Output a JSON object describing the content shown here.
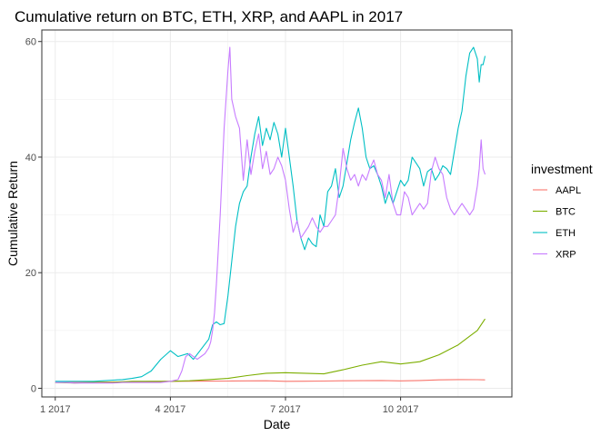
{
  "chart_data": {
    "type": "line",
    "title": "Cumulative return on BTC, ETH, XRP, and AAPL in 2017",
    "xlabel": "Date",
    "ylabel": "Cumulative Return",
    "xlim": [
      -0.35,
      11.9
    ],
    "ylim": [
      -1.5,
      62
    ],
    "x_ticks": [
      0,
      3,
      6,
      9
    ],
    "x_tick_labels": [
      "1 2017",
      "4 2017",
      "7 2017",
      "10 2017"
    ],
    "y_ticks": [
      0,
      20,
      40,
      60
    ],
    "y_tick_labels": [
      "0",
      "20",
      "40",
      "60"
    ],
    "grid": true,
    "legend": {
      "title": "investment",
      "position": "right"
    },
    "series": [
      {
        "name": "AAPL",
        "color": "#F8766D",
        "x": [
          0,
          0.5,
          1,
          1.5,
          2,
          2.5,
          3,
          3.5,
          4,
          4.5,
          5,
          5.5,
          6,
          6.5,
          7,
          7.5,
          8,
          8.5,
          9,
          9.5,
          10,
          10.5,
          11,
          11.2
        ],
        "y": [
          1.0,
          1.02,
          1.05,
          1.08,
          1.12,
          1.18,
          1.2,
          1.22,
          1.23,
          1.25,
          1.28,
          1.3,
          1.2,
          1.22,
          1.25,
          1.3,
          1.32,
          1.35,
          1.28,
          1.35,
          1.45,
          1.5,
          1.48,
          1.45
        ]
      },
      {
        "name": "BTC",
        "color": "#7CAE00",
        "x": [
          0,
          0.5,
          1,
          1.5,
          2,
          2.5,
          3,
          3.5,
          4,
          4.5,
          5,
          5.5,
          6,
          6.5,
          7,
          7.5,
          8,
          8.5,
          9,
          9.5,
          10,
          10.5,
          11,
          11.2
        ],
        "y": [
          1.0,
          0.9,
          1.0,
          1.05,
          1.2,
          1.2,
          1.2,
          1.3,
          1.5,
          1.7,
          2.2,
          2.6,
          2.7,
          2.6,
          2.5,
          3.2,
          4.0,
          4.6,
          4.2,
          4.6,
          5.8,
          7.5,
          10.0,
          12.0
        ]
      },
      {
        "name": "ETH",
        "color": "#00BFC4",
        "x": [
          0,
          0.25,
          0.5,
          0.75,
          1,
          1.25,
          1.5,
          1.75,
          2,
          2.25,
          2.5,
          2.75,
          3,
          3.2,
          3.45,
          3.6,
          4,
          4.1,
          4.2,
          4.3,
          4.4,
          4.5,
          4.6,
          4.7,
          4.8,
          4.9,
          5.0,
          5.1,
          5.2,
          5.3,
          5.4,
          5.5,
          5.6,
          5.7,
          5.8,
          5.9,
          6.0,
          6.1,
          6.2,
          6.3,
          6.4,
          6.5,
          6.6,
          6.7,
          6.8,
          6.9,
          7.0,
          7.1,
          7.2,
          7.3,
          7.4,
          7.5,
          7.6,
          7.7,
          7.8,
          7.9,
          8.0,
          8.1,
          8.2,
          8.3,
          8.4,
          8.5,
          8.6,
          8.7,
          8.8,
          8.9,
          9.0,
          9.1,
          9.2,
          9.3,
          9.4,
          9.5,
          9.6,
          9.7,
          9.8,
          9.9,
          10.0,
          10.1,
          10.2,
          10.3,
          10.4,
          10.5,
          10.6,
          10.7,
          10.8,
          10.9,
          11.0,
          11.05,
          11.1,
          11.15,
          11.2
        ],
        "y": [
          1.2,
          1.2,
          1.2,
          1.2,
          1.2,
          1.3,
          1.4,
          1.5,
          1.7,
          2.0,
          3.0,
          5.0,
          6.5,
          5.5,
          6.0,
          5.0,
          8.5,
          11.0,
          11.5,
          11.0,
          11.2,
          16.0,
          22.0,
          28.0,
          32.0,
          34.0,
          35.0,
          40.0,
          44.0,
          47.0,
          42.0,
          45.0,
          43.0,
          46.0,
          44.0,
          40.0,
          45.0,
          40.0,
          35.0,
          29.0,
          26.0,
          24.0,
          26.0,
          25.0,
          24.5,
          30.0,
          28.0,
          34.0,
          35.0,
          38.0,
          33.0,
          35.0,
          39.0,
          43.0,
          46.0,
          48.5,
          45.0,
          40.0,
          38.0,
          38.5,
          37.0,
          35.0,
          32.0,
          34.0,
          32.0,
          34.0,
          36.0,
          35.0,
          36.0,
          40.0,
          39.0,
          38.0,
          35.0,
          37.5,
          38.0,
          36.0,
          37.0,
          38.5,
          38.0,
          37.0,
          41.0,
          45.0,
          48.0,
          54.0,
          58.0,
          59.0,
          57.0,
          53.0,
          56.0,
          56.0,
          57.5
        ]
      },
      {
        "name": "XRP",
        "color": "#C77CFF",
        "x": [
          0,
          0.25,
          0.5,
          0.75,
          1,
          1.25,
          1.5,
          1.75,
          2,
          2.25,
          2.5,
          2.75,
          3,
          3.2,
          3.3,
          3.4,
          3.5,
          3.6,
          3.7,
          3.8,
          3.9,
          4.0,
          4.05,
          4.1,
          4.15,
          4.2,
          4.3,
          4.4,
          4.5,
          4.55,
          4.6,
          4.7,
          4.8,
          4.9,
          5.0,
          5.1,
          5.2,
          5.3,
          5.4,
          5.5,
          5.6,
          5.7,
          5.8,
          5.9,
          6.0,
          6.1,
          6.2,
          6.3,
          6.4,
          6.5,
          6.6,
          6.7,
          6.8,
          6.9,
          7.0,
          7.1,
          7.2,
          7.3,
          7.4,
          7.5,
          7.6,
          7.7,
          7.8,
          7.9,
          8.0,
          8.1,
          8.2,
          8.3,
          8.4,
          8.5,
          8.6,
          8.7,
          8.8,
          8.9,
          9.0,
          9.1,
          9.2,
          9.3,
          9.4,
          9.5,
          9.6,
          9.7,
          9.8,
          9.9,
          10.0,
          10.1,
          10.2,
          10.3,
          10.4,
          10.5,
          10.6,
          10.7,
          10.8,
          10.9,
          11.0,
          11.05,
          11.1,
          11.15,
          11.2
        ],
        "y": [
          1.0,
          1.0,
          0.9,
          0.9,
          0.9,
          0.9,
          0.9,
          1.0,
          1.0,
          1.0,
          1.0,
          1.0,
          1.2,
          1.5,
          3.0,
          5.5,
          6.0,
          5.5,
          5.0,
          5.5,
          6.0,
          7.0,
          8.0,
          10.0,
          13.0,
          18.0,
          30.0,
          45.0,
          55.0,
          59.0,
          50.0,
          47.0,
          45.0,
          36.0,
          43.0,
          37.0,
          41.0,
          44.0,
          38.0,
          41.0,
          37.0,
          38.0,
          40.0,
          38.5,
          36.0,
          31.0,
          27.0,
          29.0,
          26.0,
          27.0,
          28.0,
          29.5,
          28.0,
          27.0,
          28.0,
          28.0,
          29.0,
          30.0,
          35.0,
          41.5,
          38.0,
          36.0,
          37.0,
          35.0,
          37.0,
          36.0,
          38.0,
          39.5,
          37.0,
          36.0,
          33.0,
          37.0,
          32.0,
          30.0,
          30.0,
          34.0,
          33.0,
          30.0,
          31.0,
          32.0,
          31.0,
          32.0,
          37.5,
          40.0,
          38.0,
          37.0,
          33.0,
          31.0,
          30.0,
          31.0,
          32.0,
          31.0,
          30.0,
          31.0,
          35.0,
          38.0,
          43.0,
          38.0,
          37.0
        ]
      }
    ]
  }
}
